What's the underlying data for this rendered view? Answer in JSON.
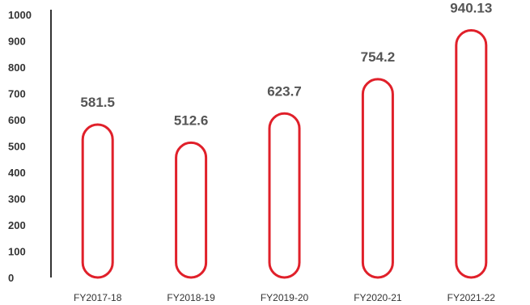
{
  "colors": {
    "bar_stroke": "#e0202a",
    "bar_fill": "#ffffff",
    "axis": "#333333",
    "tick_text": "#333333",
    "label_text": "#555555"
  },
  "chart_data": {
    "type": "bar",
    "categories": [
      "FY2017-18",
      "FY2018-19",
      "FY2019-20",
      "FY2020-21",
      "FY2021-22"
    ],
    "values": [
      581.5,
      512.6,
      623.7,
      754.2,
      940.13
    ],
    "data_labels": [
      "581.5",
      "512.6",
      "623.7",
      "754.2",
      "940.13"
    ],
    "title": "",
    "xlabel": "",
    "ylabel": "",
    "ylim": [
      0,
      1000
    ],
    "yticks": [
      "0",
      "100",
      "200",
      "300",
      "400",
      "500",
      "600",
      "700",
      "800",
      "900",
      "1000"
    ],
    "grid": false,
    "legend": "none",
    "bar_style": "rounded outline"
  }
}
